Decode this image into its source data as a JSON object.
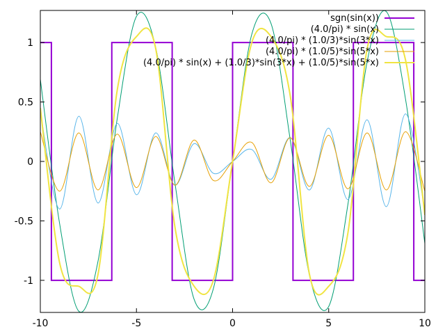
{
  "chart_data": {
    "type": "line",
    "xlim": [
      -10,
      10
    ],
    "ylim": [
      -1.27,
      1.27
    ],
    "x_ticks": [
      -10,
      -5,
      0,
      5,
      10
    ],
    "x_tick_labels": [
      "-10",
      "-5",
      "0",
      "5",
      "10"
    ],
    "y_ticks": [
      1,
      0.5,
      0,
      -0.5,
      -1
    ],
    "y_tick_labels": [
      "1",
      "0.5",
      "0",
      "-0.5",
      "-1"
    ],
    "grid": false,
    "legend_position": "top-right",
    "series": [
      {
        "name": "sgn(sin(x))",
        "color": "#9400d3",
        "step": true,
        "x": [
          -10,
          -9.425,
          -9.425,
          -6.283,
          -6.283,
          -3.142,
          -3.142,
          0,
          0,
          3.142,
          3.142,
          6.283,
          6.283,
          9.425,
          9.425,
          10
        ],
        "y": [
          1,
          1,
          -1,
          -1,
          1,
          1,
          -1,
          -1,
          1,
          1,
          -1,
          -1,
          1,
          1,
          -1,
          -1
        ]
      },
      {
        "name": "(4.0/pi) * sin(x)",
        "color": "#009e73",
        "x": [
          -10,
          -9,
          -8,
          -7,
          -6,
          -5,
          -4,
          -3,
          -2,
          -1,
          0,
          1,
          2,
          3,
          4,
          5,
          6,
          7,
          8,
          9,
          10
        ],
        "y": [
          0.69,
          -0.52,
          -1.26,
          -0.84,
          0.36,
          1.22,
          0.96,
          -0.18,
          -1.16,
          -1.07,
          0,
          1.07,
          1.16,
          0.18,
          -0.96,
          -1.22,
          -0.36,
          0.84,
          1.26,
          0.52,
          -0.69
        ]
      },
      {
        "name": "(4.0/pi) * (1.0/3)*sin(3*x)",
        "color": "#56b4e9",
        "x": [
          -10,
          -9,
          -8,
          -7,
          -6,
          -5,
          -4,
          -3,
          -2,
          -1,
          0,
          1,
          2,
          3,
          4,
          5,
          6,
          7,
          8,
          9,
          10
        ],
        "y": [
          0.42,
          -0.4,
          0.38,
          -0.35,
          0.32,
          -0.28,
          0.24,
          -0.2,
          0.15,
          -0.1,
          0,
          0.1,
          -0.15,
          0.2,
          -0.24,
          0.28,
          -0.32,
          0.35,
          -0.38,
          0.4,
          -0.42
        ]
      },
      {
        "name": "(4.0/pi) * (1.0/5)*sin(5*x)",
        "color": "#e69f00",
        "x": [
          -10,
          -9,
          -8,
          -7,
          -6,
          -5,
          -4,
          -3,
          -2,
          -1,
          0,
          1,
          2,
          3,
          4,
          5,
          6,
          7,
          8,
          9,
          10
        ],
        "y": [
          0.25,
          -0.25,
          0.24,
          -0.24,
          0.23,
          -0.22,
          0.21,
          -0.2,
          0.18,
          -0.16,
          0,
          0.16,
          -0.18,
          0.2,
          -0.21,
          0.22,
          -0.23,
          0.24,
          -0.24,
          0.25,
          -0.25
        ]
      },
      {
        "name": "(4.0/pi) * sin(x) + (1.0/3)*sin(3*x) + (1.0/5)*sin(5*x)",
        "color": "#f0e442",
        "x": [
          -10,
          -9,
          -8,
          -7,
          -6,
          -5,
          -4,
          -3,
          -2,
          -1,
          0,
          1,
          2,
          3,
          4,
          5,
          6,
          7,
          8,
          9,
          10
        ],
        "y": [
          0.45,
          -0.85,
          -1.05,
          -0.95,
          0.6,
          1.05,
          0.95,
          -0.55,
          -1.05,
          -1.0,
          0,
          1.0,
          1.05,
          0.55,
          -0.95,
          -1.05,
          -0.6,
          0.95,
          1.05,
          0.85,
          -0.45
        ]
      }
    ]
  }
}
